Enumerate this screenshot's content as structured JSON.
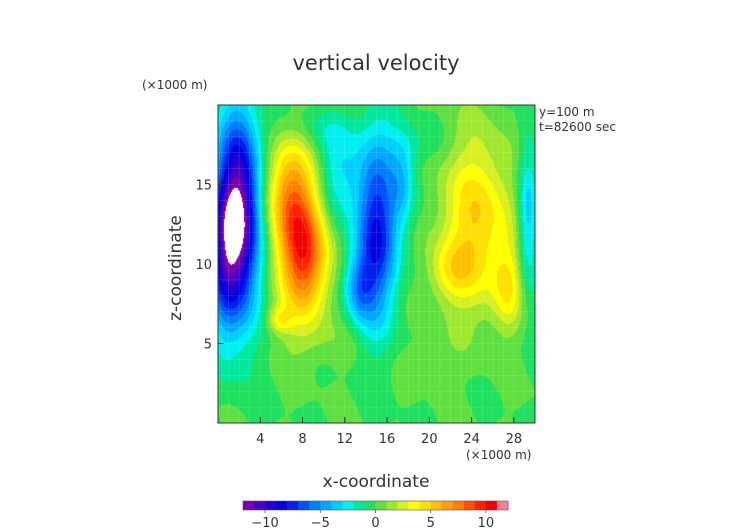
{
  "chart_data": {
    "type": "heatmap",
    "title": "vertical velocity",
    "xlabel": "x-coordinate",
    "ylabel": "z-coordinate",
    "x_unit": "(×1000 m)",
    "y_unit": "(×1000 m)",
    "annotations": [
      "y=100 m",
      "t=82600 sec"
    ],
    "xlim": [
      0,
      30
    ],
    "ylim": [
      0,
      20
    ],
    "x_ticks": [
      4,
      8,
      12,
      16,
      20,
      24,
      28
    ],
    "y_ticks": [
      5,
      10,
      15
    ],
    "grid": true,
    "colorbar": {
      "range": [
        -12,
        12
      ],
      "ticks": [
        -10,
        -5,
        0,
        5,
        10
      ],
      "colors": [
        "#7a00b0",
        "#4b00c8",
        "#1e00d2",
        "#0000e0",
        "#0020f0",
        "#0050ff",
        "#0080ff",
        "#00a8ff",
        "#00d0ff",
        "#00f0f0",
        "#00e8a0",
        "#20e060",
        "#60e040",
        "#a0e830",
        "#d8f020",
        "#ffff00",
        "#ffe000",
        "#ffc000",
        "#ffa000",
        "#ff8000",
        "#ff5000",
        "#ff2000",
        "#f00000",
        "#ff8090"
      ]
    },
    "field_features": [
      {
        "x": 2.0,
        "z": 13.0,
        "sx": 1.4,
        "sz": 4.5,
        "value": -12.5
      },
      {
        "x": 0.5,
        "z": 10.5,
        "sx": 1.0,
        "sz": 3.5,
        "value": -5
      },
      {
        "x": 7.5,
        "z": 12.0,
        "sx": 1.7,
        "sz": 3.2,
        "value": 6
      },
      {
        "x": 8.5,
        "z": 10.0,
        "sx": 1.5,
        "sz": 2.5,
        "value": 5
      },
      {
        "x": 6.5,
        "z": 15.0,
        "sx": 1.6,
        "sz": 2.2,
        "value": 3.5
      },
      {
        "x": 5.8,
        "z": 6.5,
        "sx": 0.8,
        "sz": 0.6,
        "value": 3
      },
      {
        "x": 15.0,
        "z": 12.0,
        "sx": 1.4,
        "sz": 4.0,
        "value": -8
      },
      {
        "x": 13.3,
        "z": 8.5,
        "sx": 1.0,
        "sz": 1.5,
        "value": -4
      },
      {
        "x": 11.5,
        "z": 15.5,
        "sx": 1.5,
        "sz": 2.0,
        "value": -3
      },
      {
        "x": 17.5,
        "z": 15.0,
        "sx": 0.9,
        "sz": 2.0,
        "value": -3
      },
      {
        "x": 24.5,
        "z": 12.5,
        "sx": 2.4,
        "sz": 3.8,
        "value": 5
      },
      {
        "x": 22.0,
        "z": 9.5,
        "sx": 1.5,
        "sz": 1.3,
        "value": 2.5
      },
      {
        "x": 27.5,
        "z": 8.5,
        "sx": 1.0,
        "sz": 1.8,
        "value": 3
      },
      {
        "x": 29.3,
        "z": 13.0,
        "sx": 0.7,
        "sz": 3.5,
        "value": -4
      },
      {
        "x": 9.5,
        "z": 18.5,
        "sx": 3.0,
        "sz": 1.0,
        "value": -1.2
      },
      {
        "x": 18.0,
        "z": 17.5,
        "sx": 2.0,
        "sz": 1.0,
        "value": -1.2
      },
      {
        "x": 10.0,
        "z": 5.0,
        "sx": 3.0,
        "sz": 1.0,
        "value": 0.6
      },
      {
        "x": 20.0,
        "z": 4.0,
        "sx": 2.0,
        "sz": 1.0,
        "value": 0.5
      }
    ]
  }
}
